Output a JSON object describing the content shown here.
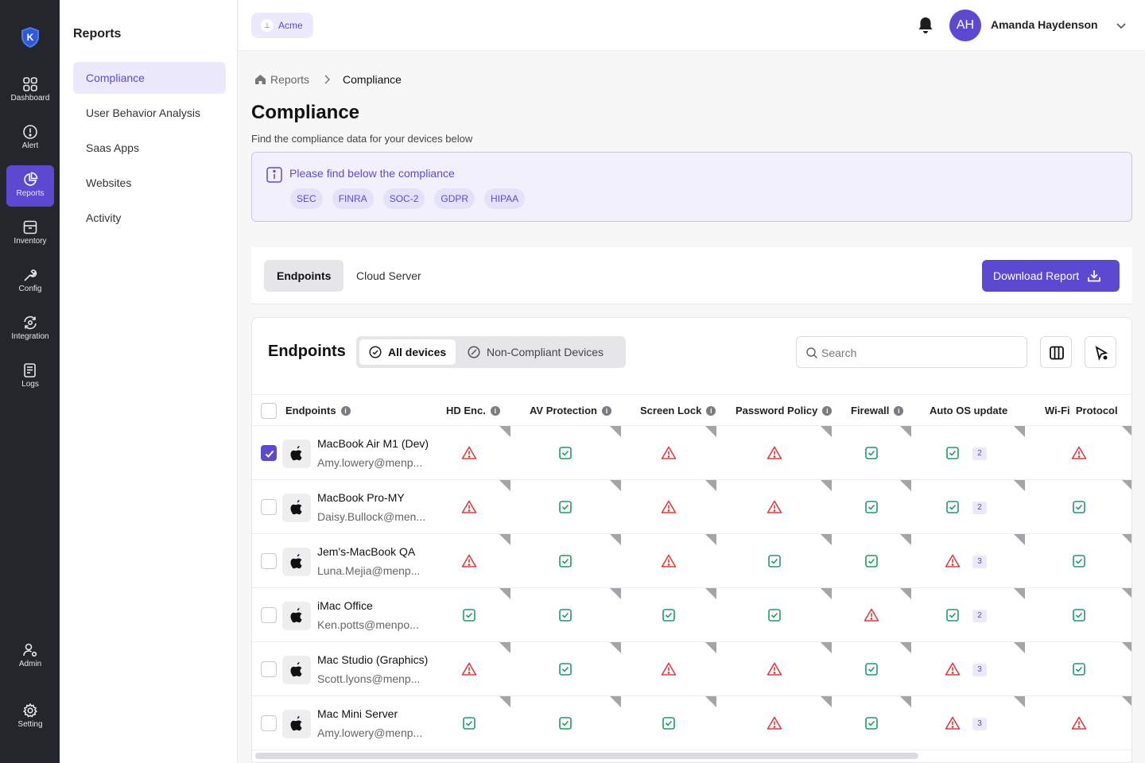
{
  "rail": {
    "items": [
      {
        "label": "Dashboard",
        "icon": "grid-icon"
      },
      {
        "label": "Alert",
        "icon": "alert-icon"
      },
      {
        "label": "Reports",
        "icon": "pie-chart-icon"
      },
      {
        "label": "Inventory",
        "icon": "archive-icon"
      },
      {
        "label": "Config",
        "icon": "wrench-icon"
      },
      {
        "label": "Integration",
        "icon": "sync-icon"
      },
      {
        "label": "Logs",
        "icon": "document-icon"
      },
      {
        "label": "Admin",
        "icon": "user-gear-icon"
      },
      {
        "label": "Setting",
        "icon": "gear-icon"
      }
    ],
    "active": "Reports"
  },
  "sidebar": {
    "title": "Reports",
    "items": [
      {
        "label": "Compliance"
      },
      {
        "label": "User Behavior Analysis"
      },
      {
        "label": "Saas Apps"
      },
      {
        "label": "Websites"
      },
      {
        "label": "Activity"
      }
    ]
  },
  "topbar": {
    "org": "Acme",
    "user_initials": "AH",
    "user_name": "Amanda Haydenson"
  },
  "breadcrumb": {
    "parent": "Reports",
    "current": "Compliance"
  },
  "page": {
    "title": "Compliance",
    "subtitle": "Find the compliance data for your devices below"
  },
  "info": {
    "text": "Please find below the compliance",
    "chips": [
      "SEC",
      "FINRA",
      "SOC-2",
      "GDPR",
      "HIPAA"
    ]
  },
  "tabs": {
    "endpoints": "Endpoints",
    "cloud": "Cloud Server",
    "download": "Download Report"
  },
  "card": {
    "title": "Endpoints",
    "filter_all": "All devices",
    "filter_noncompliant": "Non-Compliant Devices",
    "search_placeholder": "Search"
  },
  "table": {
    "columns": [
      "Endpoints",
      "HD Enc.",
      "AV Protection",
      "Screen Lock",
      "Password Policy",
      "Firewall",
      "Auto OS update",
      "Wi-Fi  Protocol"
    ],
    "rows": [
      {
        "name": "MacBook Air M1 (Dev)",
        "email": "Amy.lowery@menp...",
        "checked": true,
        "status": [
          "warn",
          "ok",
          "warn",
          "warn",
          "ok",
          "ok",
          "warn"
        ],
        "os_count": "2"
      },
      {
        "name": "MacBook Pro-MY",
        "email": "Daisy.Bullock@men...",
        "checked": false,
        "status": [
          "warn",
          "ok",
          "warn",
          "warn",
          "ok",
          "ok",
          "ok"
        ],
        "os_count": "2"
      },
      {
        "name": "Jem's-MacBook QA",
        "email": "Luna.Mejia@menp...",
        "checked": false,
        "status": [
          "warn",
          "ok",
          "warn",
          "ok",
          "ok",
          "warn",
          "ok"
        ],
        "os_count": "3"
      },
      {
        "name": "iMac Office",
        "email": "Ken.potts@menpo...",
        "checked": false,
        "status": [
          "ok",
          "ok",
          "ok",
          "ok",
          "warn",
          "ok",
          "ok"
        ],
        "os_count": "2"
      },
      {
        "name": "Mac Studio (Graphics)",
        "email": "Scott.lyons@menp...",
        "checked": false,
        "status": [
          "warn",
          "ok",
          "warn",
          "warn",
          "ok",
          "warn",
          "ok"
        ],
        "os_count": "3"
      },
      {
        "name": "Mac Mini Server",
        "email": "Amy.lowery@menp...",
        "checked": false,
        "status": [
          "ok",
          "ok",
          "ok",
          "warn",
          "ok",
          "warn",
          "warn"
        ],
        "os_count": "3"
      }
    ]
  },
  "colors": {
    "accent": "#5b4ad1",
    "ok": "#1e9b63",
    "warn": "#e03b3b",
    "rail": "#24262c"
  }
}
